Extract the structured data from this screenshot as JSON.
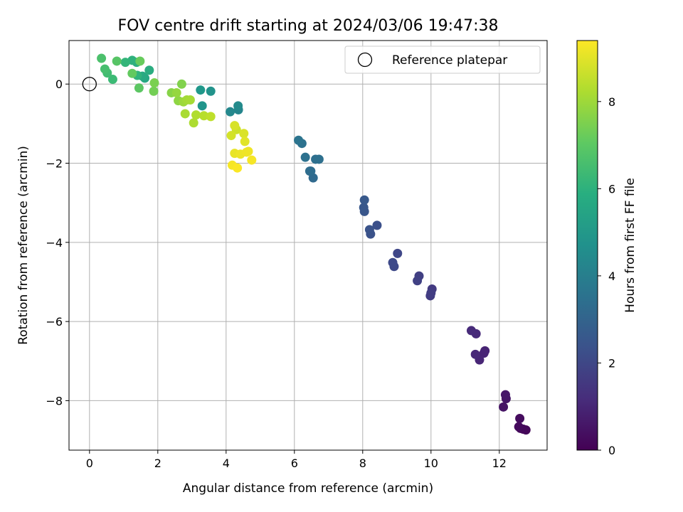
{
  "chart_data": {
    "type": "scatter",
    "title": "FOV centre drift starting at 2024/03/06 19:47:38",
    "xlabel": "Angular distance from reference (arcmin)",
    "ylabel": "Rotation from reference (arcmin)",
    "xlim": [
      -0.6,
      13.4
    ],
    "ylim": [
      -9.25,
      1.1
    ],
    "xticks": [
      0,
      2,
      4,
      6,
      8,
      10,
      12
    ],
    "yticks": [
      0,
      -2,
      -4,
      -6,
      -8
    ],
    "xtick_labels": [
      "0",
      "2",
      "4",
      "6",
      "8",
      "10",
      "12"
    ],
    "ytick_labels": [
      "0",
      "−2",
      "−4",
      "−6",
      "−8"
    ],
    "grid": true,
    "legend": {
      "position": "upper-right",
      "entries": [
        "Reference platepar"
      ]
    },
    "reference_point": {
      "x": 0,
      "y": 0
    },
    "colorbar": {
      "label": "Hours from first FF file",
      "min": 0,
      "max": 9.4,
      "ticks": [
        0,
        2,
        4,
        6,
        8
      ],
      "tick_labels": [
        "0",
        "2",
        "4",
        "6",
        "8"
      ],
      "colormap": "viridis"
    },
    "series": [
      {
        "points": [
          [
            12.78,
            -8.74,
            0.15
          ],
          [
            12.7,
            -8.72,
            0.18
          ],
          [
            12.62,
            -8.7,
            0.2
          ],
          [
            12.57,
            -8.66,
            0.25
          ],
          [
            12.6,
            -8.45,
            0.3
          ],
          [
            12.12,
            -8.16,
            0.5
          ],
          [
            12.2,
            -7.95,
            0.55
          ],
          [
            12.18,
            -7.85,
            0.6
          ],
          [
            11.58,
            -6.74,
            0.9
          ],
          [
            11.55,
            -6.8,
            0.95
          ],
          [
            11.42,
            -6.97,
            1.0
          ],
          [
            11.3,
            -6.83,
            1.05
          ],
          [
            11.32,
            -6.31,
            1.1
          ],
          [
            11.18,
            -6.23,
            1.15
          ],
          [
            10.03,
            -5.18,
            1.6
          ],
          [
            9.98,
            -5.35,
            1.65
          ],
          [
            10.0,
            -5.28,
            1.7
          ],
          [
            9.65,
            -4.85,
            1.75
          ],
          [
            9.6,
            -4.97,
            1.8
          ],
          [
            9.02,
            -4.28,
            2.0
          ],
          [
            8.92,
            -4.61,
            2.05
          ],
          [
            8.88,
            -4.51,
            2.1
          ],
          [
            8.42,
            -3.57,
            2.3
          ],
          [
            8.23,
            -3.79,
            2.35
          ],
          [
            8.2,
            -3.68,
            2.4
          ],
          [
            8.05,
            -3.22,
            2.5
          ],
          [
            8.03,
            -3.12,
            2.55
          ],
          [
            8.05,
            -2.93,
            2.6
          ],
          [
            6.55,
            -2.37,
            3.2
          ],
          [
            6.48,
            -2.2,
            3.3
          ],
          [
            6.45,
            -2.2,
            3.35
          ],
          [
            6.62,
            -1.9,
            3.4
          ],
          [
            6.72,
            -1.9,
            3.45
          ],
          [
            6.32,
            -1.85,
            3.5
          ],
          [
            6.22,
            -1.5,
            3.55
          ],
          [
            6.12,
            -1.42,
            3.6
          ],
          [
            4.36,
            -0.65,
            4.3
          ],
          [
            4.12,
            -0.7,
            4.4
          ],
          [
            4.35,
            -0.55,
            4.5
          ],
          [
            3.55,
            -0.18,
            4.8
          ],
          [
            3.3,
            -0.55,
            4.9
          ],
          [
            3.25,
            -0.15,
            5.0
          ],
          [
            1.62,
            0.15,
            5.6
          ],
          [
            1.55,
            0.2,
            5.7
          ],
          [
            1.75,
            0.35,
            5.8
          ],
          [
            1.38,
            0.55,
            5.9
          ],
          [
            1.25,
            0.6,
            6.0
          ],
          [
            1.4,
            0.22,
            6.1
          ],
          [
            1.05,
            0.55,
            6.2
          ],
          [
            0.68,
            0.12,
            6.4
          ],
          [
            0.52,
            0.28,
            6.5
          ],
          [
            0.45,
            0.38,
            6.6
          ],
          [
            0.35,
            0.65,
            6.7
          ],
          [
            0.8,
            0.58,
            6.9
          ],
          [
            1.45,
            -0.1,
            7.0
          ],
          [
            1.25,
            0.27,
            7.1
          ],
          [
            1.48,
            0.58,
            7.2
          ],
          [
            1.88,
            -0.18,
            7.4
          ],
          [
            1.9,
            0.03,
            7.5
          ],
          [
            2.7,
            0.0,
            7.6
          ],
          [
            2.4,
            -0.22,
            7.7
          ],
          [
            2.6,
            -0.42,
            7.8
          ],
          [
            2.55,
            -0.22,
            7.9
          ],
          [
            2.75,
            -0.45,
            8.0
          ],
          [
            2.85,
            -0.4,
            8.1
          ],
          [
            2.95,
            -0.4,
            8.15
          ],
          [
            2.8,
            -0.75,
            8.2
          ],
          [
            3.05,
            -0.98,
            8.25
          ],
          [
            3.12,
            -0.78,
            8.3
          ],
          [
            3.35,
            -0.8,
            8.4
          ],
          [
            3.55,
            -0.82,
            8.5
          ],
          [
            4.3,
            -1.15,
            8.7
          ],
          [
            4.15,
            -1.3,
            8.8
          ],
          [
            4.25,
            -1.05,
            8.85
          ],
          [
            4.52,
            -1.25,
            8.9
          ],
          [
            4.55,
            -1.45,
            9.0
          ],
          [
            4.25,
            -1.75,
            9.1
          ],
          [
            4.42,
            -1.77,
            9.15
          ],
          [
            4.6,
            -1.72,
            9.2
          ],
          [
            4.65,
            -1.7,
            9.2
          ],
          [
            4.75,
            -1.92,
            9.3
          ],
          [
            4.18,
            -2.05,
            9.3
          ],
          [
            4.33,
            -2.12,
            9.35
          ]
        ]
      }
    ]
  }
}
